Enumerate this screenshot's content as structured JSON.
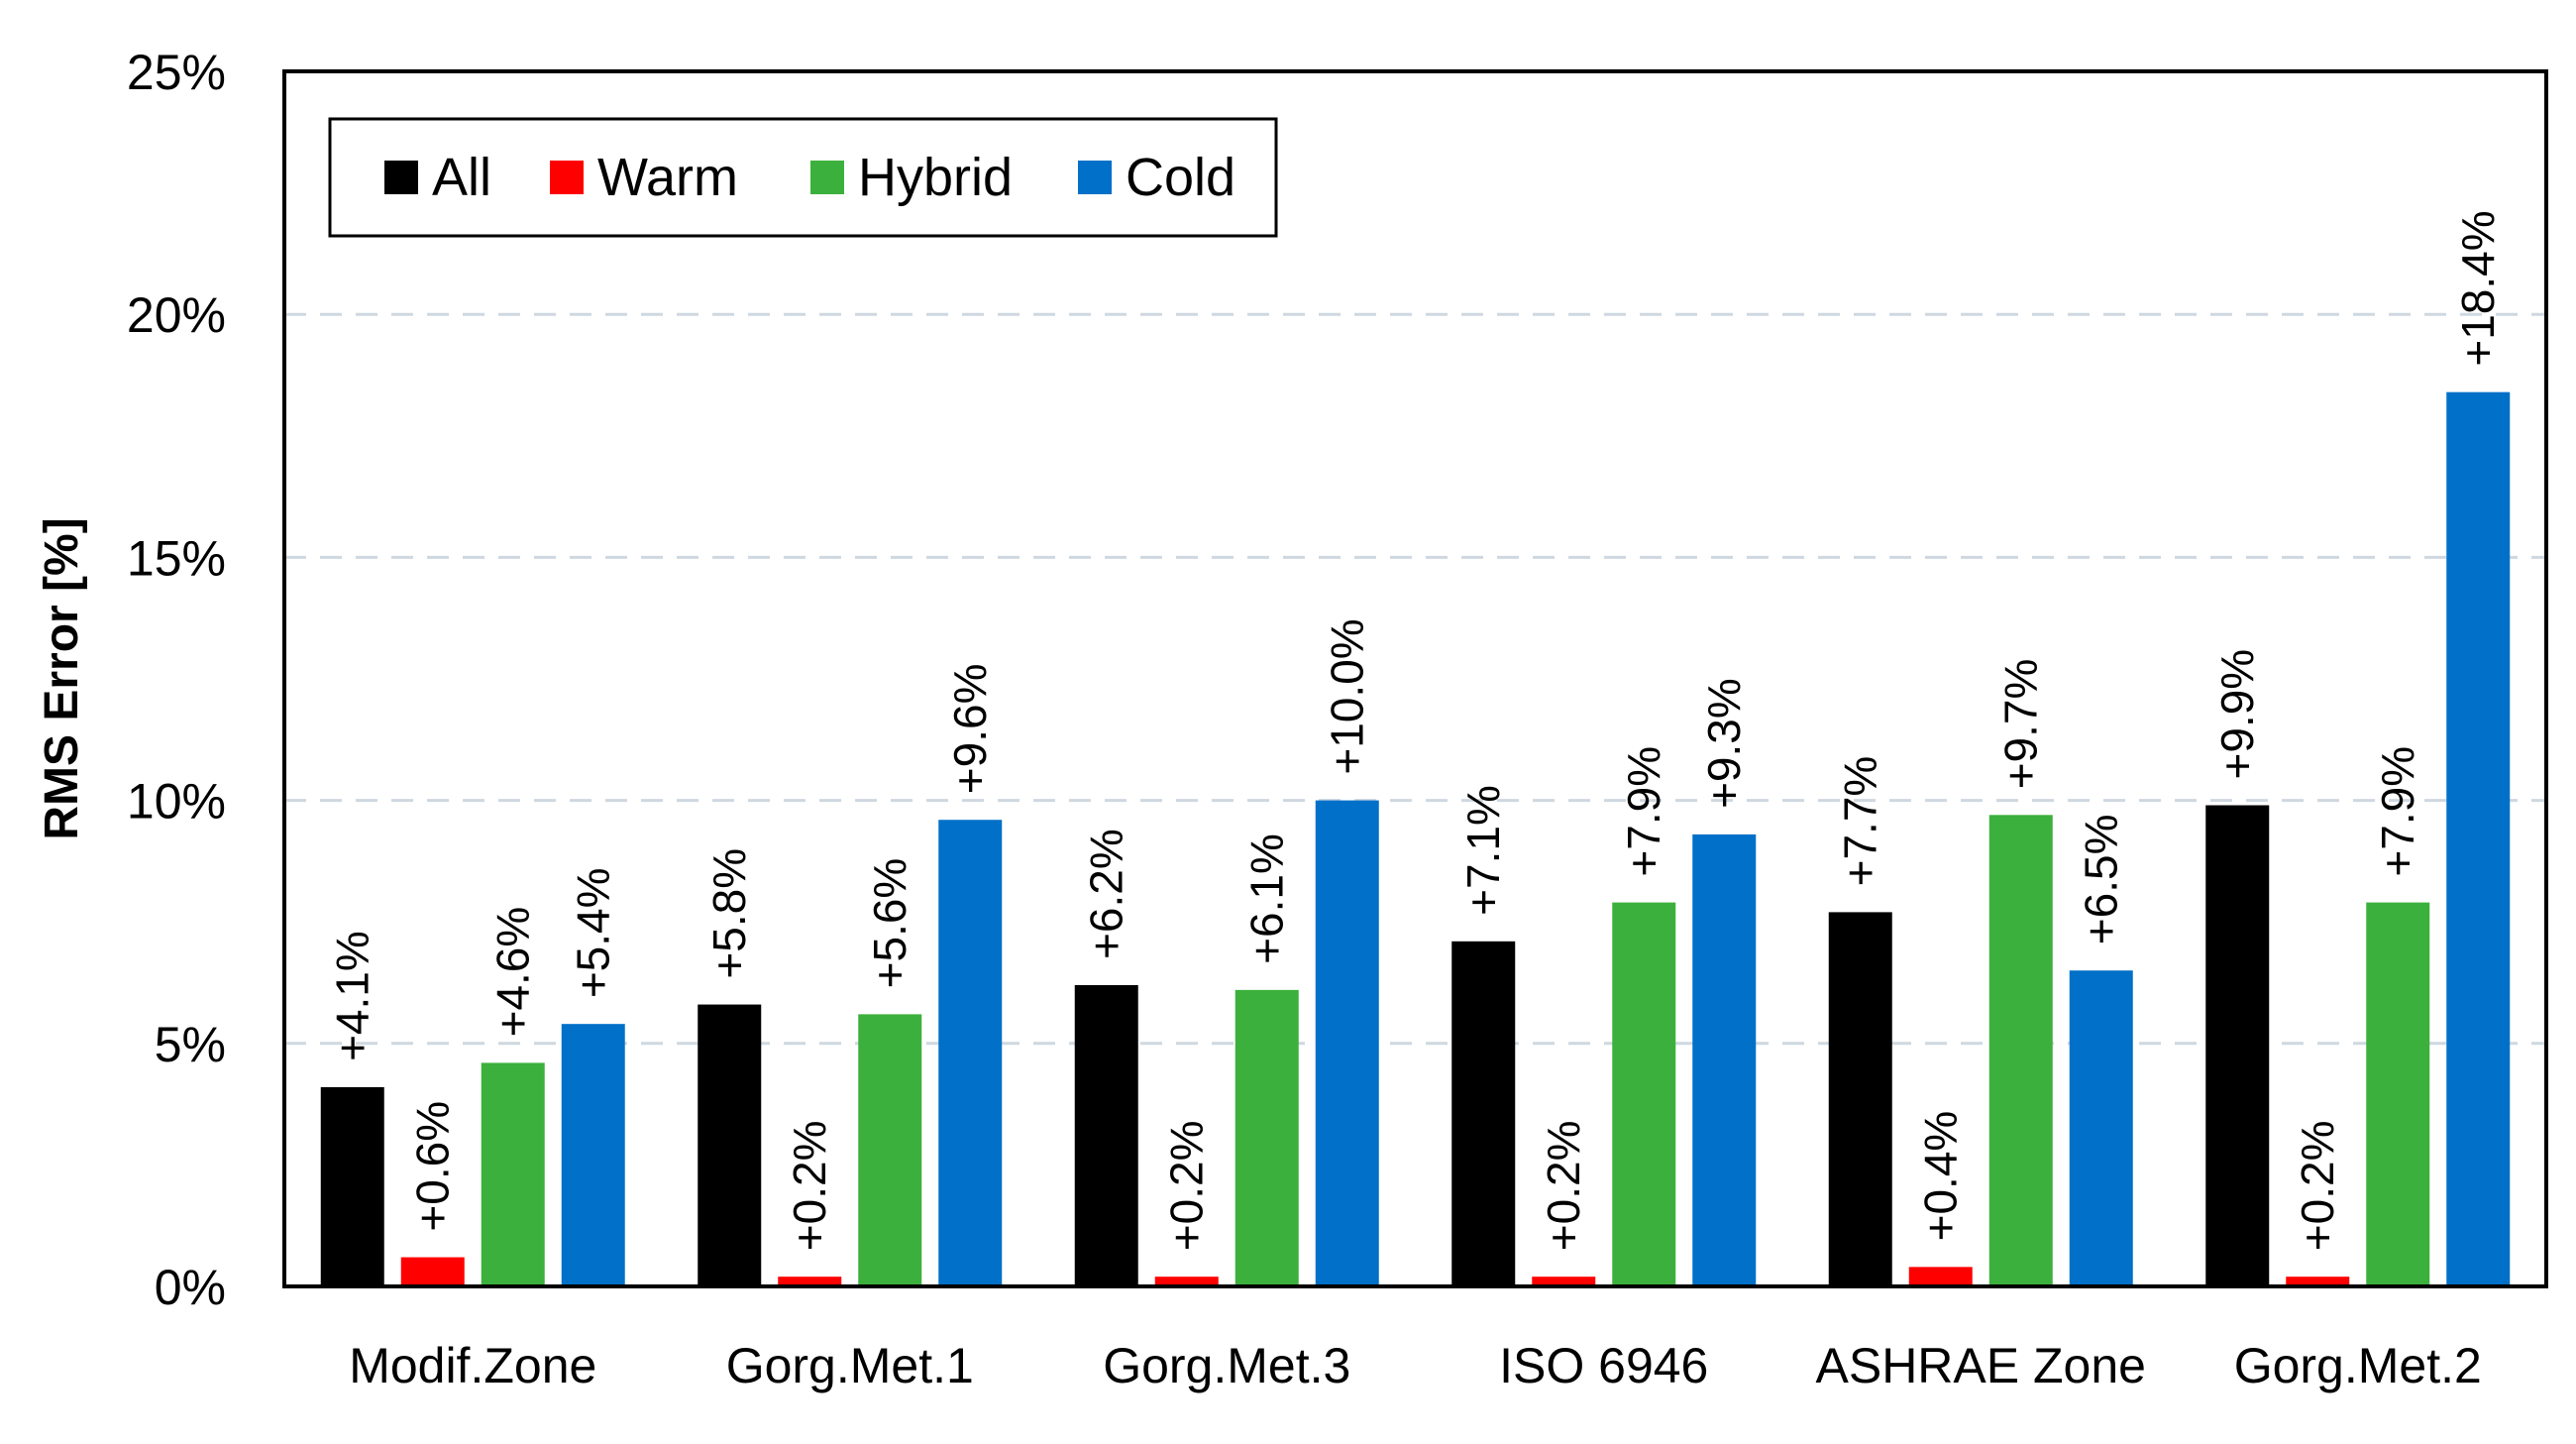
{
  "chart_data": {
    "type": "bar",
    "title": "",
    "xlabel": "",
    "ylabel": "RMS Error [%]",
    "ylim": [
      0,
      25
    ],
    "yticks": [
      0,
      5,
      10,
      15,
      20,
      25
    ],
    "ytick_labels": [
      "0%",
      "5%",
      "10%",
      "15%",
      "20%",
      "25%"
    ],
    "grid": true,
    "legend_position": "top-left",
    "categories": [
      "Modif.Zone",
      "Gorg.Met.1",
      "Gorg.Met.3",
      "ISO 6946",
      "ASHRAE Zone",
      "Gorg.Met.2"
    ],
    "series": [
      {
        "name": "All",
        "color": "#000000",
        "values": [
          4.1,
          5.8,
          6.2,
          7.1,
          7.7,
          9.9
        ],
        "labels": [
          "+4.1%",
          "+5.8%",
          "+6.2%",
          "+7.1%",
          "+7.7%",
          "+9.9%"
        ]
      },
      {
        "name": "Warm",
        "color": "#ff0000",
        "values": [
          0.6,
          0.2,
          0.2,
          0.2,
          0.4,
          0.2
        ],
        "labels": [
          "+0.6%",
          "+0.2%",
          "+0.2%",
          "+0.2%",
          "+0.4%",
          "+0.2%"
        ]
      },
      {
        "name": "Hybrid",
        "color": "#3cb03c",
        "values": [
          4.6,
          5.6,
          6.1,
          7.9,
          9.7,
          7.9
        ],
        "labels": [
          "+4.6%",
          "+5.6%",
          "+6.1%",
          "+7.9%",
          "+9.7%",
          "+7.9%"
        ]
      },
      {
        "name": "Cold",
        "color": "#0070c8",
        "values": [
          5.4,
          9.6,
          10.0,
          9.3,
          6.5,
          18.4
        ],
        "labels": [
          "+5.4%",
          "+9.6%",
          "+10.0%",
          "+9.3%",
          "+6.5%",
          "+18.4%"
        ]
      }
    ]
  }
}
